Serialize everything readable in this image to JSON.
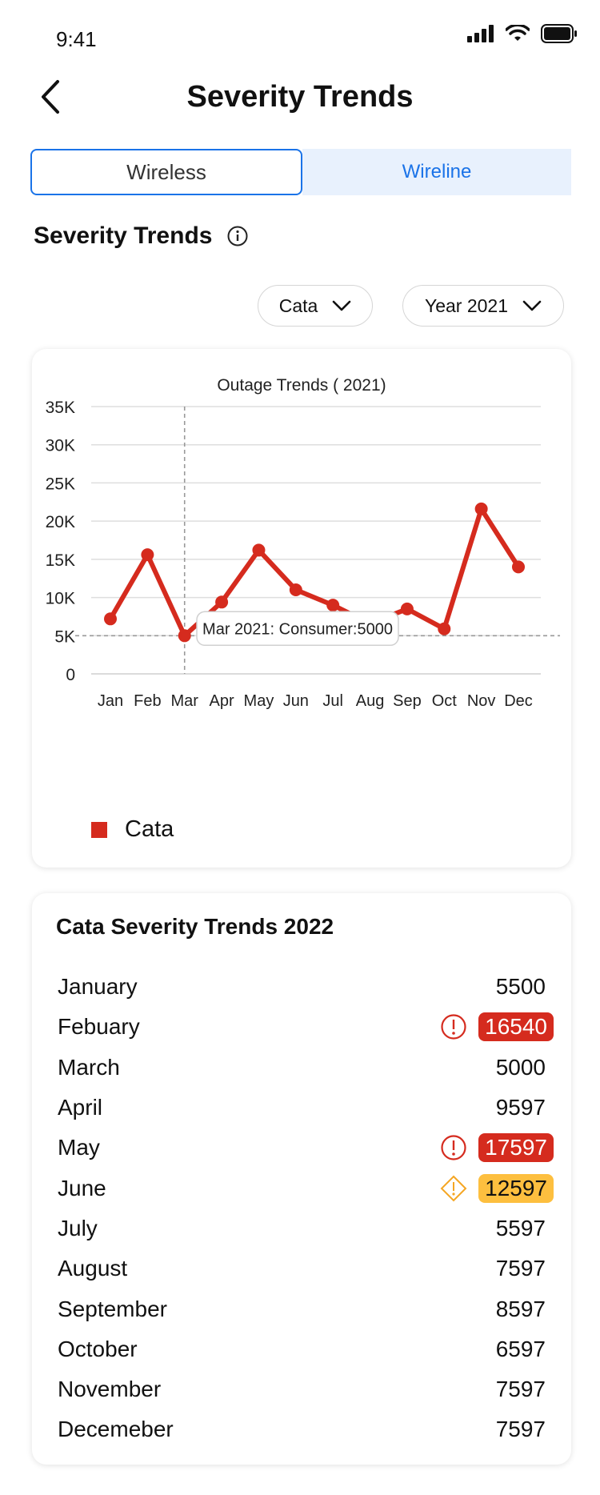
{
  "status_bar": {
    "time": "9:41"
  },
  "header": {
    "title": "Severity Trends"
  },
  "tabs": [
    {
      "label": "Wireless",
      "active": true
    },
    {
      "label": "Wireline",
      "active": false
    }
  ],
  "section": {
    "title": "Severity Trends"
  },
  "filters": {
    "category": "Cata",
    "year": "Year 2021"
  },
  "chart_card": {
    "tooltip": "Mar 2021: Consumer:5000",
    "legend_label": "Cata"
  },
  "chart_data": {
    "type": "line",
    "title": "Outage Trends ( 2021)",
    "categories": [
      "Jan",
      "Feb",
      "Mar",
      "Apr",
      "May",
      "Jun",
      "Jul",
      "Aug",
      "Sep",
      "Oct",
      "Nov",
      "Dec"
    ],
    "series": [
      {
        "name": "Cata",
        "color": "#d52b1e",
        "values": [
          7200,
          15600,
          5000,
          9400,
          16200,
          11000,
          9000,
          6600,
          8500,
          5900,
          21600,
          14000
        ]
      }
    ],
    "y_ticks": [
      "0",
      "5K",
      "10K",
      "15K",
      "20K",
      "25K",
      "30K",
      "35K"
    ],
    "ylim": [
      0,
      35000
    ],
    "grid": true,
    "highlight": {
      "category": "Mar",
      "value": 5000
    }
  },
  "table": {
    "title": "Cata Severity Trends 2022",
    "rows": [
      {
        "month": "January",
        "value": "5500",
        "status": "normal"
      },
      {
        "month": "Febuary",
        "value": "16540",
        "status": "critical"
      },
      {
        "month": "March",
        "value": "5000",
        "status": "normal"
      },
      {
        "month": "April",
        "value": "9597",
        "status": "normal"
      },
      {
        "month": "May",
        "value": "17597",
        "status": "critical"
      },
      {
        "month": "June",
        "value": "12597",
        "status": "warning"
      },
      {
        "month": "July",
        "value": "5597",
        "status": "normal"
      },
      {
        "month": "August",
        "value": "7597",
        "status": "normal"
      },
      {
        "month": "September",
        "value": "8597",
        "status": "normal"
      },
      {
        "month": "October",
        "value": "6597",
        "status": "normal"
      },
      {
        "month": "November",
        "value": "7597",
        "status": "normal"
      },
      {
        "month": "Decemeber",
        "value": "7597",
        "status": "normal"
      }
    ]
  },
  "colors": {
    "accent": "#1a73e8",
    "critical": "#d52b1e",
    "warning": "#fdbf3f"
  }
}
